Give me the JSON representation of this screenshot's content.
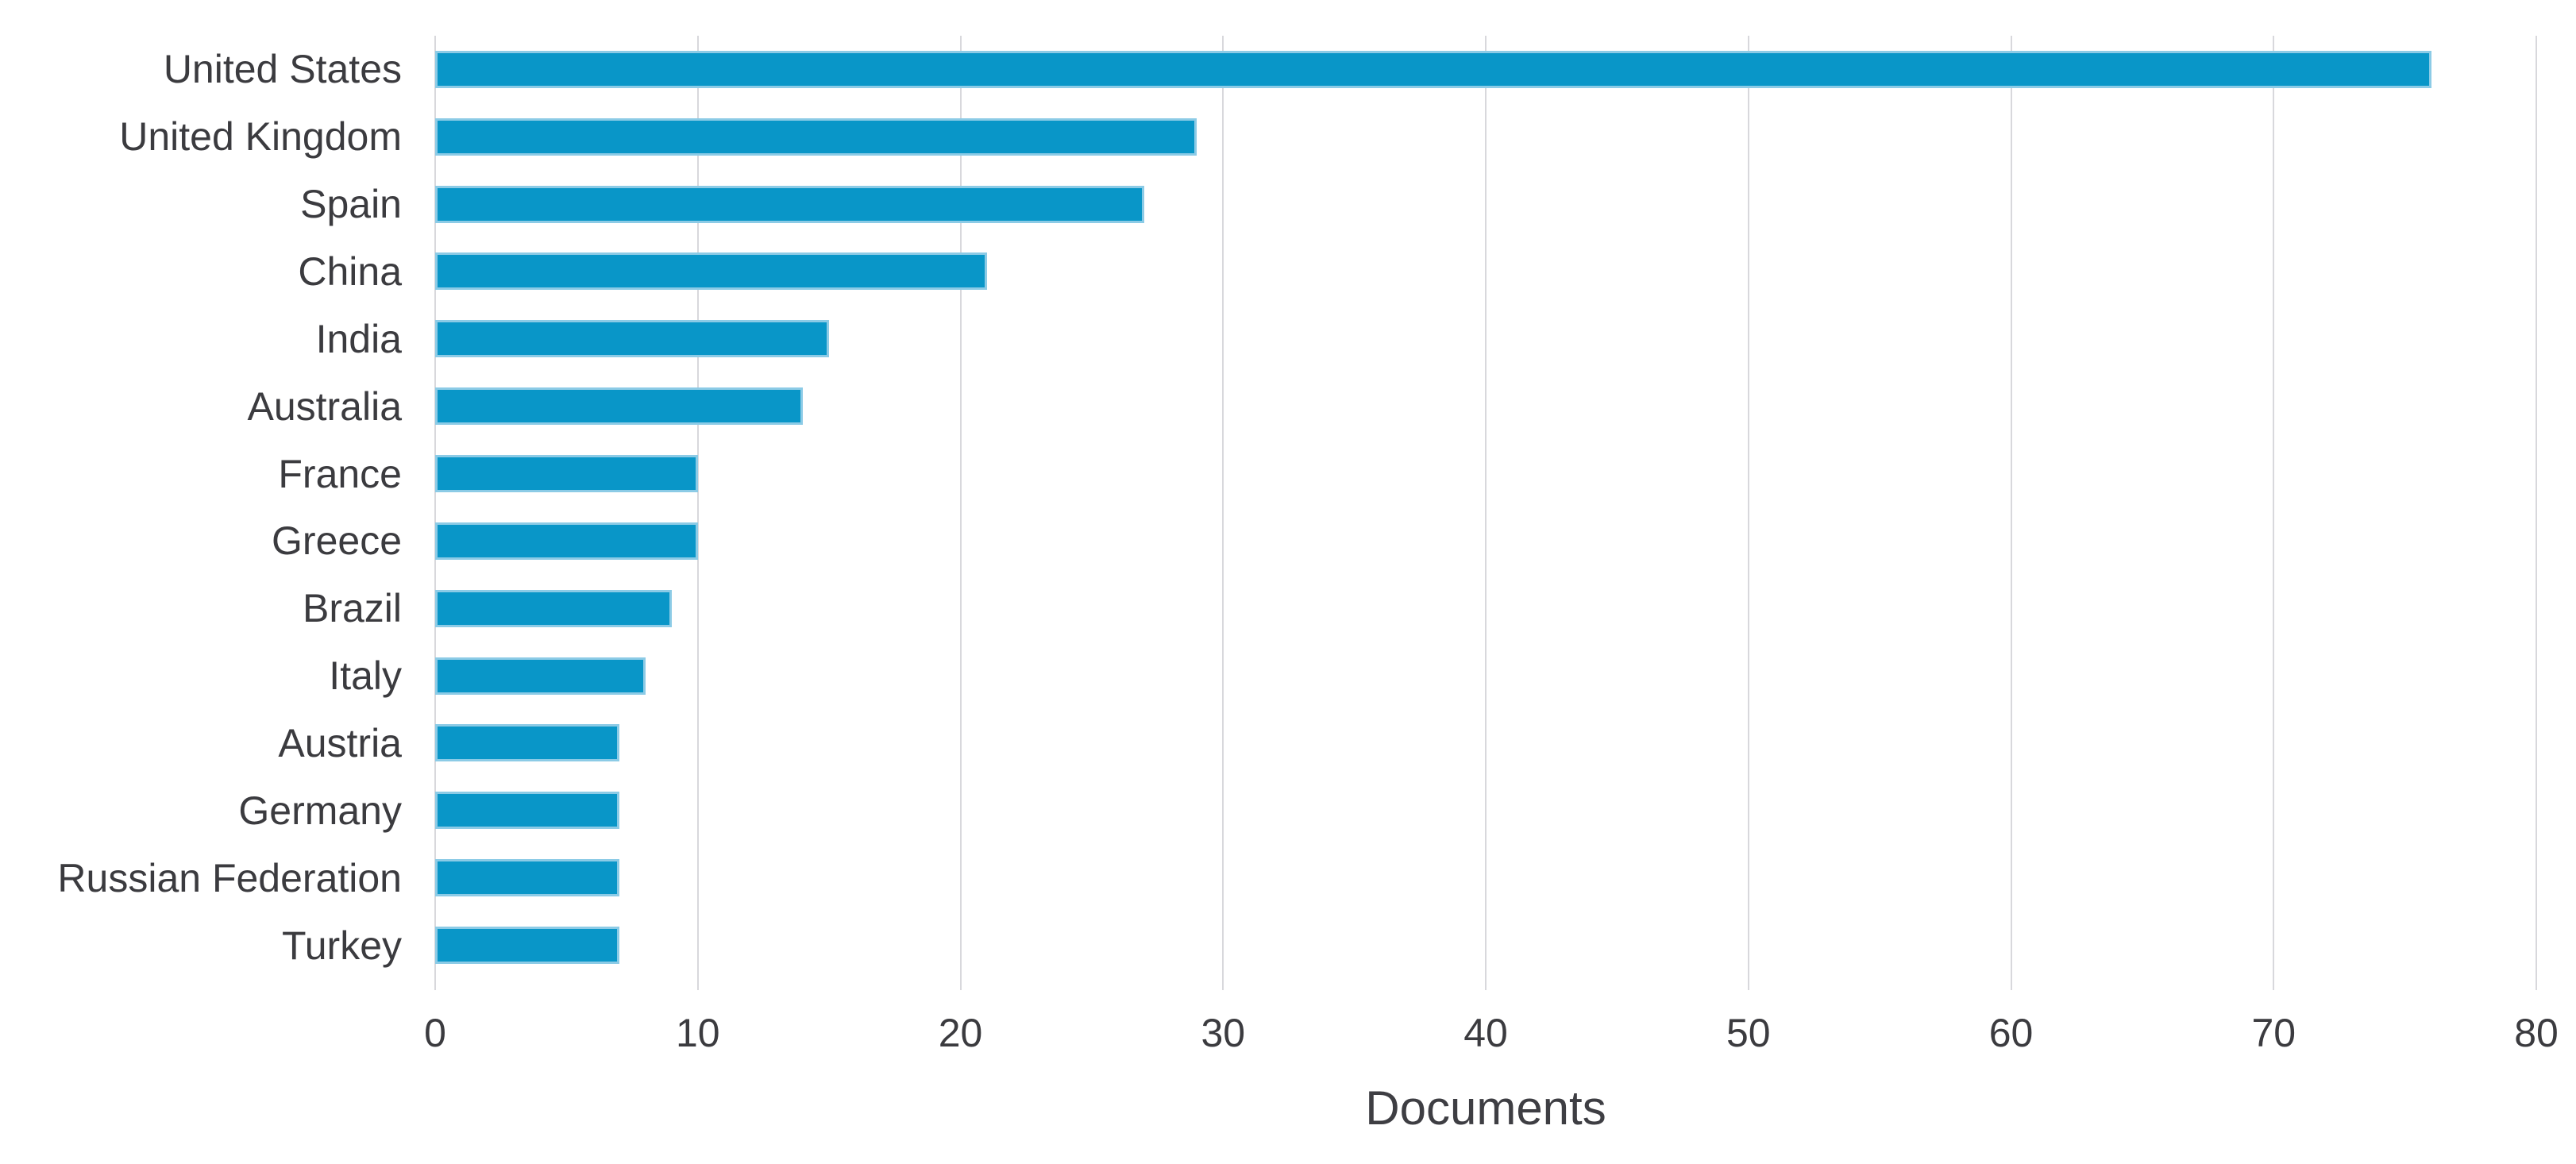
{
  "chart_data": {
    "type": "bar",
    "orientation": "horizontal",
    "title": "",
    "xlabel": "Documents",
    "ylabel": "",
    "categories": [
      "United States",
      "United Kingdom",
      "Spain",
      "China",
      "India",
      "Australia",
      "France",
      "Greece",
      "Brazil",
      "Italy",
      "Austria",
      "Germany",
      "Russian Federation",
      "Turkey"
    ],
    "values": [
      76,
      29,
      27,
      21,
      15,
      14,
      10,
      10,
      9,
      8,
      7,
      7,
      7,
      7
    ],
    "xlim": [
      0,
      80
    ],
    "xticks": [
      0,
      10,
      20,
      30,
      40,
      50,
      60,
      70,
      80
    ],
    "grid": "vertical",
    "legend": "none",
    "colors": {
      "bar_fill": "#0996c8",
      "bar_border": "#8ccbe6",
      "gridline": "#d8d8dc",
      "text": "#3b3b3f"
    }
  }
}
